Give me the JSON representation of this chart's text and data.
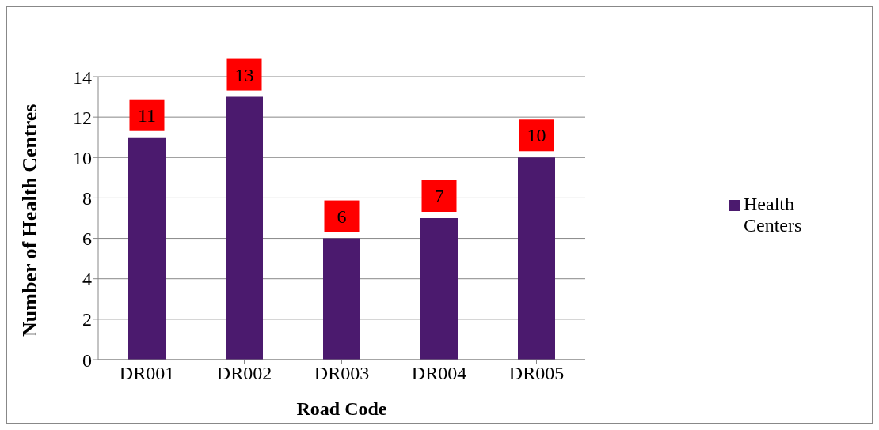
{
  "chart_data": {
    "type": "bar",
    "xlabel": "Road Code",
    "ylabel": "Number of Health Centres",
    "categories": [
      "DR001",
      "DR002",
      "DR003",
      "DR004",
      "DR005"
    ],
    "series": [
      {
        "name": "Health Centers",
        "color": "#4b1a6e",
        "values": [
          11,
          13,
          6,
          7,
          10
        ]
      }
    ],
    "ylim": [
      0,
      14
    ],
    "yticks": [
      0,
      2,
      4,
      6,
      8,
      10,
      12,
      14
    ],
    "grid": "y",
    "legend": "right",
    "data_labels": true
  }
}
